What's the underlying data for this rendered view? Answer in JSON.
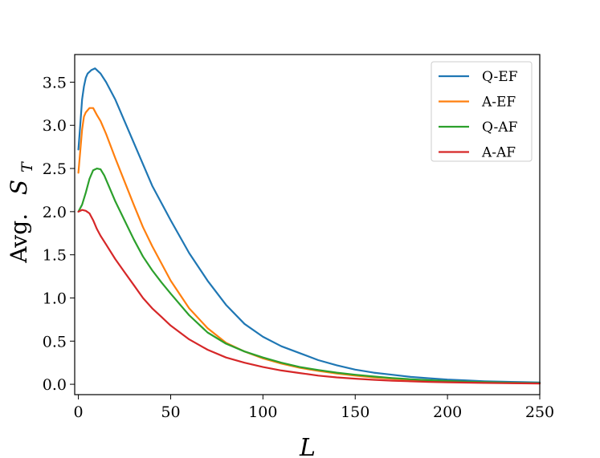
{
  "chart_data": {
    "type": "line",
    "xlabel": "L",
    "ylabel_prefix": "Avg.",
    "ylabel_symbol": "S",
    "ylabel_subscript": "T",
    "xlim": [
      -2,
      250
    ],
    "ylim": [
      -0.12,
      3.82
    ],
    "xticks": [
      0,
      50,
      100,
      150,
      200,
      250
    ],
    "xtick_labels": [
      "0",
      "50",
      "100",
      "150",
      "200",
      "250"
    ],
    "yticks": [
      0.0,
      0.5,
      1.0,
      1.5,
      2.0,
      2.5,
      3.0,
      3.5
    ],
    "ytick_labels": [
      "0.0",
      "0.5",
      "1.0",
      "1.5",
      "2.0",
      "2.5",
      "3.0",
      "3.5"
    ],
    "grid": false,
    "legend_position": "top-right",
    "series": [
      {
        "name": "Q-EF",
        "color": "#1f77b4",
        "x": [
          0,
          1,
          2,
          3,
          4,
          5,
          7,
          9,
          12,
          15,
          20,
          25,
          30,
          35,
          40,
          45,
          50,
          60,
          70,
          80,
          90,
          100,
          110,
          120,
          130,
          140,
          150,
          160,
          170,
          180,
          190,
          200,
          210,
          220,
          230,
          240,
          250
        ],
        "y": [
          2.72,
          3.0,
          3.3,
          3.45,
          3.55,
          3.6,
          3.64,
          3.66,
          3.6,
          3.5,
          3.3,
          3.05,
          2.8,
          2.55,
          2.3,
          2.1,
          1.9,
          1.52,
          1.2,
          0.92,
          0.7,
          0.55,
          0.44,
          0.36,
          0.28,
          0.22,
          0.17,
          0.135,
          0.11,
          0.085,
          0.07,
          0.055,
          0.045,
          0.035,
          0.03,
          0.025,
          0.02
        ]
      },
      {
        "name": "A-EF",
        "color": "#ff7f0e",
        "x": [
          0,
          1,
          2,
          3,
          4,
          6,
          8,
          10,
          12,
          15,
          20,
          25,
          30,
          35,
          40,
          45,
          50,
          60,
          70,
          80,
          90,
          100,
          110,
          120,
          130,
          140,
          150,
          160,
          170,
          180,
          190,
          200,
          210,
          220,
          230,
          240,
          250
        ],
        "y": [
          2.45,
          2.7,
          2.95,
          3.1,
          3.15,
          3.2,
          3.2,
          3.12,
          3.05,
          2.9,
          2.62,
          2.35,
          2.08,
          1.82,
          1.6,
          1.4,
          1.2,
          0.88,
          0.65,
          0.48,
          0.38,
          0.3,
          0.24,
          0.19,
          0.155,
          0.125,
          0.1,
          0.08,
          0.065,
          0.05,
          0.04,
          0.032,
          0.026,
          0.02,
          0.017,
          0.014,
          0.012
        ]
      },
      {
        "name": "Q-AF",
        "color": "#2ca02c",
        "x": [
          0,
          2,
          4,
          6,
          8,
          10,
          12,
          14,
          16,
          20,
          25,
          30,
          35,
          40,
          45,
          50,
          60,
          70,
          80,
          90,
          100,
          110,
          120,
          130,
          140,
          150,
          160,
          170,
          180,
          190,
          200,
          210,
          220,
          230,
          240,
          250
        ],
        "y": [
          2.0,
          2.08,
          2.22,
          2.38,
          2.48,
          2.5,
          2.49,
          2.42,
          2.32,
          2.12,
          1.9,
          1.68,
          1.48,
          1.32,
          1.18,
          1.05,
          0.8,
          0.6,
          0.47,
          0.38,
          0.31,
          0.25,
          0.2,
          0.165,
          0.135,
          0.11,
          0.09,
          0.072,
          0.058,
          0.047,
          0.038,
          0.031,
          0.025,
          0.02,
          0.017,
          0.014
        ]
      },
      {
        "name": "A-AF",
        "color": "#d62728",
        "x": [
          0,
          2,
          4,
          6,
          8,
          10,
          12,
          15,
          20,
          25,
          30,
          35,
          40,
          45,
          50,
          60,
          70,
          80,
          90,
          100,
          110,
          120,
          130,
          140,
          150,
          160,
          170,
          180,
          190,
          200,
          210,
          220,
          230,
          240,
          250
        ],
        "y": [
          2.0,
          2.02,
          2.01,
          1.98,
          1.9,
          1.8,
          1.72,
          1.62,
          1.45,
          1.3,
          1.15,
          1.0,
          0.88,
          0.78,
          0.68,
          0.52,
          0.4,
          0.31,
          0.25,
          0.2,
          0.16,
          0.13,
          0.1,
          0.08,
          0.065,
          0.052,
          0.042,
          0.034,
          0.028,
          0.023,
          0.019,
          0.016,
          0.013,
          0.011,
          0.009
        ]
      }
    ]
  }
}
